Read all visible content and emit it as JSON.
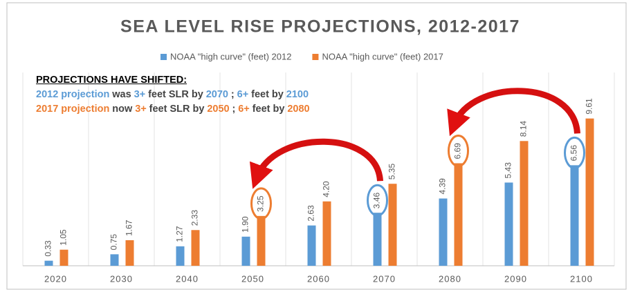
{
  "chart_data": {
    "type": "bar",
    "title": "SEA LEVEL RISE PROJECTIONS, 2012-2017",
    "categories": [
      "2020",
      "2030",
      "2040",
      "2050",
      "2060",
      "2070",
      "2080",
      "2090",
      "2100"
    ],
    "series": [
      {
        "name": "NOAA \"high curve\" (feet) 2012",
        "color": "#5b9bd5",
        "values": [
          0.33,
          0.75,
          1.27,
          1.9,
          2.63,
          3.46,
          4.39,
          5.43,
          6.56
        ],
        "value_labels": [
          "0.33",
          "0.75",
          "1.27",
          "1.90",
          "2.63",
          "3.46",
          "4.39",
          "5.43",
          "6.56"
        ]
      },
      {
        "name": "NOAA \"high curve\" (feet) 2017",
        "color": "#ed7d31",
        "values": [
          1.05,
          1.67,
          2.33,
          3.25,
          4.2,
          5.35,
          6.69,
          8.14,
          9.61
        ],
        "value_labels": [
          "1.05",
          "1.67",
          "2.33",
          "3.25",
          "4.20",
          "5.35",
          "6.69",
          "8.14",
          "9.61"
        ]
      }
    ],
    "grid": true,
    "legend": "top",
    "annotation": {
      "heading": "PROJECTIONS HAVE SHIFTED:",
      "lines": [
        [
          {
            "text": "2012 projection",
            "color": "#5b9bd5"
          },
          {
            "text": "was",
            "color": "#444444"
          },
          {
            "text": "3+",
            "color": "#5b9bd5"
          },
          {
            "text": "feet SLR by",
            "color": "#444444"
          },
          {
            "text": "2070",
            "color": "#5b9bd5"
          },
          {
            "text": ";",
            "color": "#444444"
          },
          {
            "text": "6+",
            "color": "#5b9bd5"
          },
          {
            "text": "feet by",
            "color": "#444444"
          },
          {
            "text": "2100",
            "color": "#5b9bd5"
          }
        ],
        [
          {
            "text": "2017 projection",
            "color": "#ed7d31"
          },
          {
            "text": "now",
            "color": "#444444"
          },
          {
            "text": "3+",
            "color": "#ed7d31"
          },
          {
            "text": "feet SLR by",
            "color": "#444444"
          },
          {
            "text": "2050",
            "color": "#ed7d31"
          },
          {
            "text": ";",
            "color": "#444444"
          },
          {
            "text": "6+",
            "color": "#ed7d31"
          },
          {
            "text": "feet by",
            "color": "#444444"
          },
          {
            "text": "2080",
            "color": "#ed7d31"
          }
        ]
      ]
    }
  }
}
